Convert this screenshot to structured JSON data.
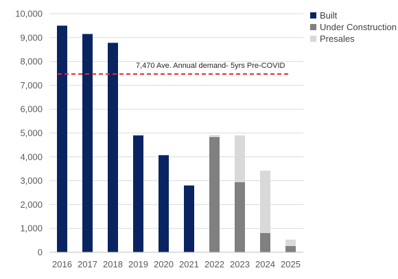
{
  "chart_data": {
    "type": "bar",
    "stacked": true,
    "categories": [
      "2016",
      "2017",
      "2018",
      "2019",
      "2020",
      "2021",
      "2022",
      "2023",
      "2024",
      "2025"
    ],
    "series": [
      {
        "name": "Built",
        "color": "#0a2462",
        "values": [
          9500,
          9150,
          8780,
          4900,
          4070,
          2800,
          0,
          0,
          0,
          0
        ]
      },
      {
        "name": "Under Construction",
        "color": "#808080",
        "values": [
          0,
          0,
          0,
          0,
          0,
          0,
          4830,
          2940,
          810,
          260
        ]
      },
      {
        "name": "Presales",
        "color": "#d9d9d9",
        "values": [
          0,
          0,
          0,
          0,
          0,
          0,
          80,
          1960,
          2610,
          270
        ]
      }
    ],
    "ylim": [
      0,
      10000
    ],
    "yticks": [
      0,
      1000,
      2000,
      3000,
      4000,
      5000,
      6000,
      7000,
      8000,
      9000,
      10000
    ],
    "ytick_labels": [
      "0",
      "1,000",
      "2,000",
      "3,000",
      "4,000",
      "5,000",
      "6,000",
      "7,000",
      "8,000",
      "9,000",
      "10,000"
    ],
    "grid": true,
    "legend_position": "top-right",
    "reference_line": {
      "value": 7470,
      "color": "#e03030",
      "style": "dashed",
      "label": "7,470  Ave. Annual demand- 5yrs Pre-COVID"
    }
  }
}
